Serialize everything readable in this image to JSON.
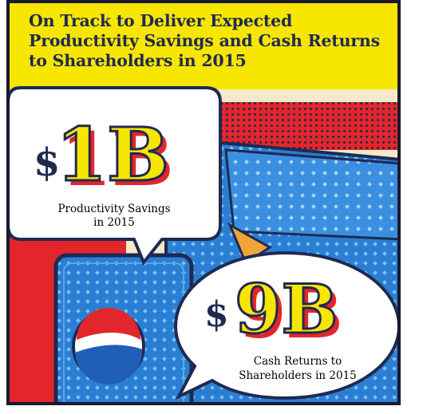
{
  "title": "On Track to Deliver Expected Productivity Savings and Cash Returns to Shareholders in 2015",
  "colors": {
    "navy": "#1f2a52",
    "yellow": "#f7e600",
    "red": "#e3262c",
    "blue": "#2a7fd4",
    "light_blue": "#5aa6e6",
    "orange": "#f0a53a",
    "cream": "#f4e9c8"
  },
  "stat_productivity": {
    "currency": "$",
    "amount": "1B",
    "caption_line1": "Productivity Savings",
    "caption_line2": "in 2015"
  },
  "stat_cash": {
    "currency": "$",
    "amount": "9B",
    "caption_line1": "Cash Returns to",
    "caption_line2": "Shareholders in 2015"
  },
  "logo_icon": "pepsi-globe-icon"
}
